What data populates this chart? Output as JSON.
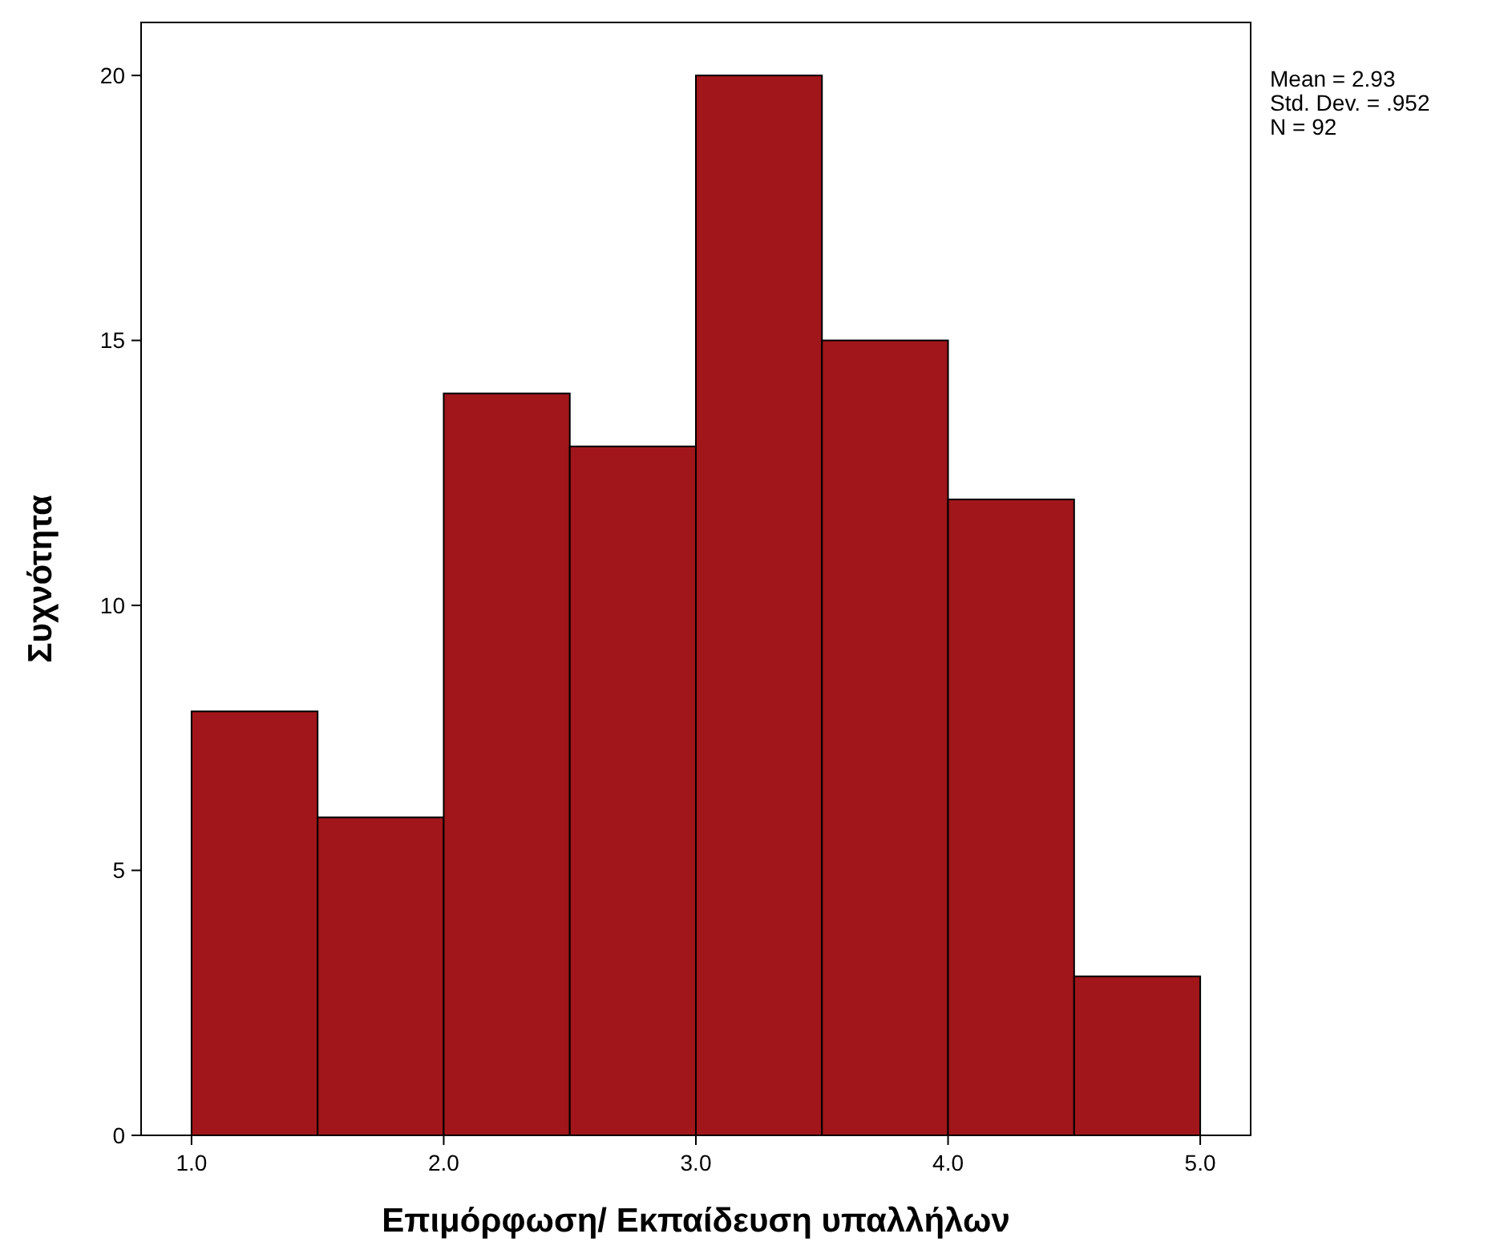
{
  "chart_data": {
    "type": "histogram",
    "xlabel": "Επιμόρφωση/ Εκπαίδευση υπαλλήλων",
    "ylabel": "Συχνότητα",
    "bins": [
      1.0,
      1.5,
      2.0,
      2.5,
      3.0,
      3.5,
      4.0,
      4.5,
      5.0
    ],
    "values": [
      8,
      6,
      14,
      13,
      20,
      15,
      12,
      3
    ],
    "color": "#a0161a",
    "xlim": [
      0.8,
      5.2
    ],
    "ylim": [
      0,
      21
    ],
    "xticks": [
      {
        "value": 1,
        "label": "1.0"
      },
      {
        "value": 2,
        "label": "2.0"
      },
      {
        "value": 3,
        "label": "3.0"
      },
      {
        "value": 4,
        "label": "4.0"
      },
      {
        "value": 5,
        "label": "5.0"
      }
    ],
    "yticks": [
      0,
      5,
      10,
      15,
      20
    ],
    "annotations": [
      "Mean = 2.93",
      "Std. Dev. = .952",
      "N = 92"
    ]
  }
}
